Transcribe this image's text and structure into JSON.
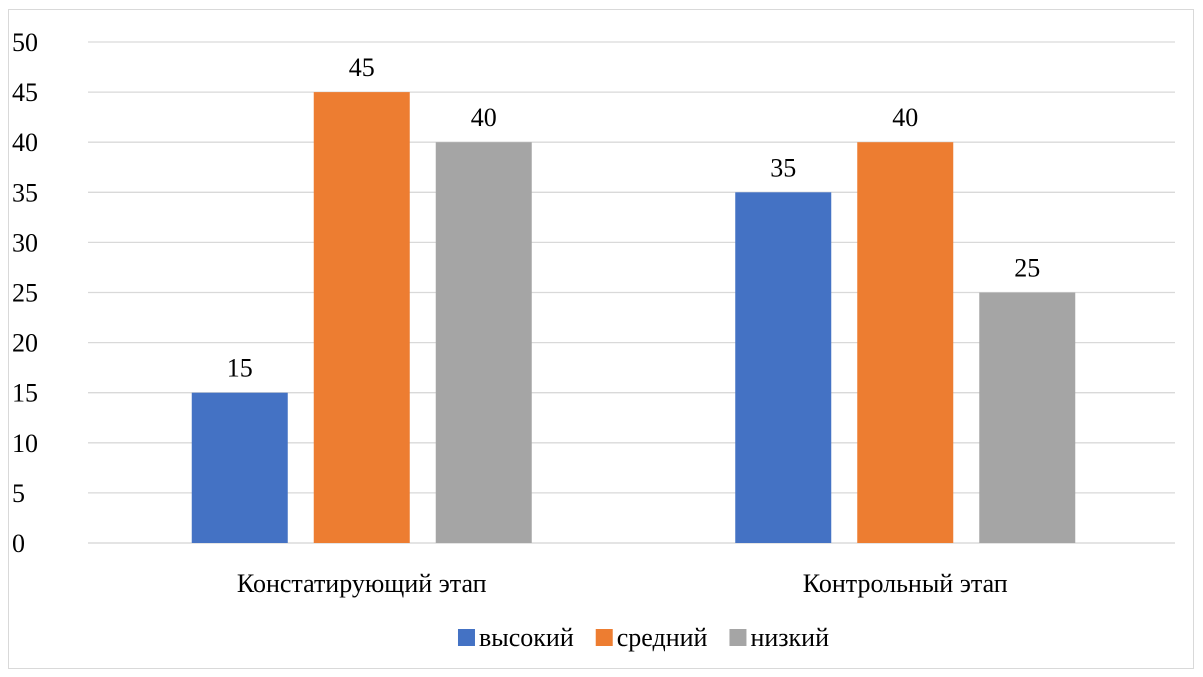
{
  "chart_data": {
    "type": "bar",
    "categories": [
      "Констатирующий этап",
      "Контрольный этап"
    ],
    "series": [
      {
        "name": "высокий",
        "values": [
          15,
          35
        ],
        "color": "#4472c4"
      },
      {
        "name": "средний",
        "values": [
          45,
          40
        ],
        "color": "#ed7d31"
      },
      {
        "name": "низкий",
        "values": [
          40,
          25
        ],
        "color": "#a5a5a5"
      }
    ],
    "title": "",
    "xlabel": "",
    "ylabel": "",
    "ylim": [
      0,
      50
    ],
    "yticks": [
      0,
      5,
      10,
      15,
      20,
      25,
      30,
      35,
      40,
      45,
      50
    ],
    "grid": true,
    "gridColor": "#d9d9d9",
    "legend": "bottom",
    "data_labels": true
  }
}
